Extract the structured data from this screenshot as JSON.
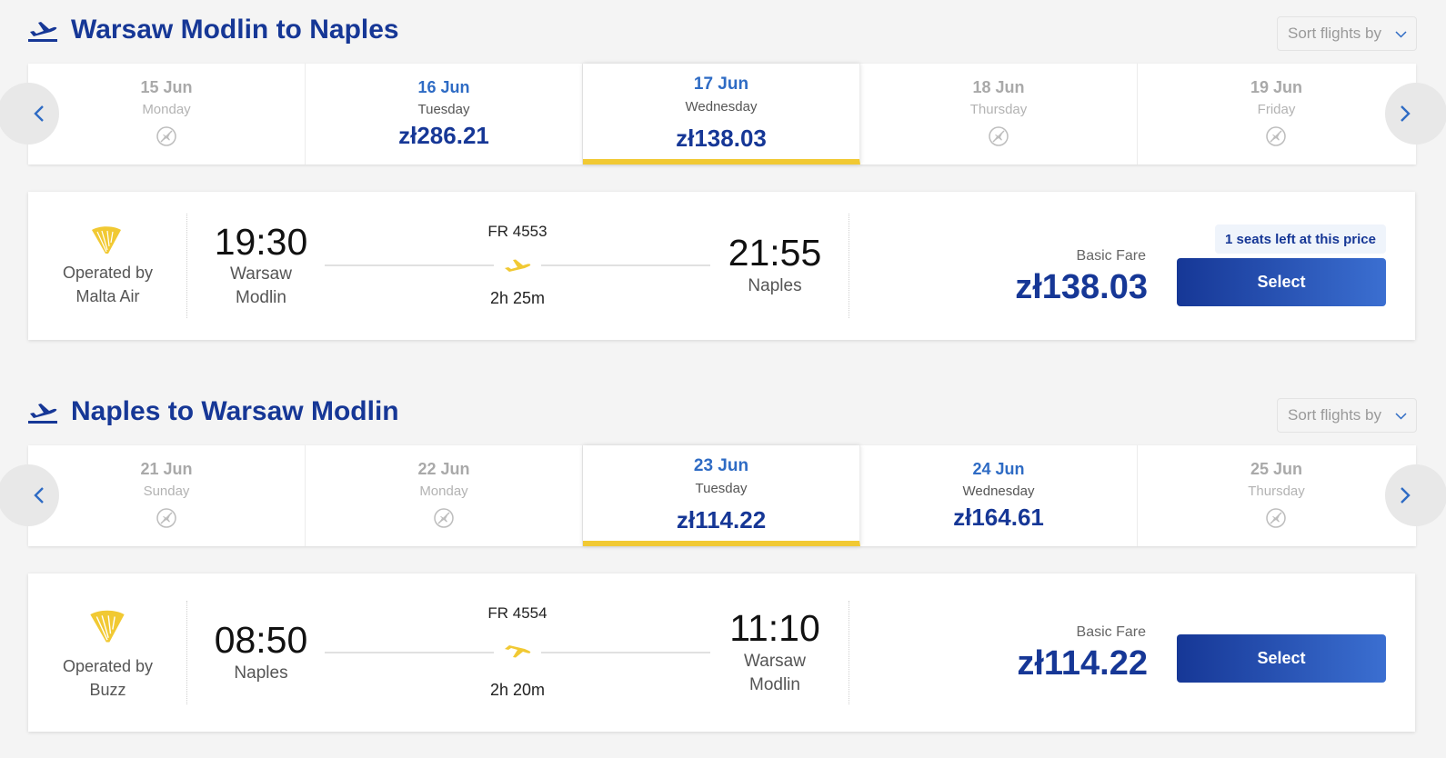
{
  "colors": {
    "brand_blue": "#163796",
    "link_blue": "#2e6bc4",
    "accent_yellow": "#f1c933",
    "background": "#f4f4f4"
  },
  "outbound": {
    "title": "Warsaw Modlin to Naples",
    "sort_label": "Sort flights by",
    "dates": [
      {
        "date": "15 Jun",
        "weekday": "Monday",
        "price": "",
        "status": "no-flight"
      },
      {
        "date": "16 Jun",
        "weekday": "Tuesday",
        "price": "zł286.21",
        "status": "available"
      },
      {
        "date": "17 Jun",
        "weekday": "Wednesday",
        "price": "zł138.03",
        "status": "selected"
      },
      {
        "date": "18 Jun",
        "weekday": "Thursday",
        "price": "",
        "status": "no-flight"
      },
      {
        "date": "19 Jun",
        "weekday": "Friday",
        "price": "",
        "status": "no-flight"
      }
    ],
    "flight": {
      "operated_by_label": "Operated by",
      "operator": "Malta Air",
      "depart_time": "19:30",
      "depart_place": [
        "Warsaw",
        "Modlin"
      ],
      "flight_number": "FR 4553",
      "duration": "2h 25m",
      "arrive_time": "21:55",
      "arrive_place": [
        "Naples"
      ],
      "fare_label": "Basic Fare",
      "price": "zł138.03",
      "seats_notice": "1 seats left at this price",
      "select_label": "Select"
    }
  },
  "return": {
    "title": "Naples to Warsaw Modlin",
    "sort_label": "Sort flights by",
    "dates": [
      {
        "date": "21 Jun",
        "weekday": "Sunday",
        "price": "",
        "status": "no-flight"
      },
      {
        "date": "22 Jun",
        "weekday": "Monday",
        "price": "",
        "status": "no-flight"
      },
      {
        "date": "23 Jun",
        "weekday": "Tuesday",
        "price": "zł114.22",
        "status": "selected"
      },
      {
        "date": "24 Jun",
        "weekday": "Wednesday",
        "price": "zł164.61",
        "status": "available"
      },
      {
        "date": "25 Jun",
        "weekday": "Thursday",
        "price": "",
        "status": "no-flight"
      }
    ],
    "flight": {
      "operated_by_label": "Operated by",
      "operator": "Buzz",
      "depart_time": "08:50",
      "depart_place": [
        "Naples"
      ],
      "flight_number": "FR 4554",
      "duration": "2h 20m",
      "arrive_time": "11:10",
      "arrive_place": [
        "Warsaw",
        "Modlin"
      ],
      "fare_label": "Basic Fare",
      "price": "zł114.22",
      "select_label": "Select"
    }
  },
  "icons": {
    "header": "plane-takeoff-icon",
    "no_flight": "no-flight-icon",
    "prev": "chevron-left-icon",
    "next": "chevron-right-icon",
    "airline_logo": "harp-logo-icon",
    "flight_path": "plane-icon"
  }
}
